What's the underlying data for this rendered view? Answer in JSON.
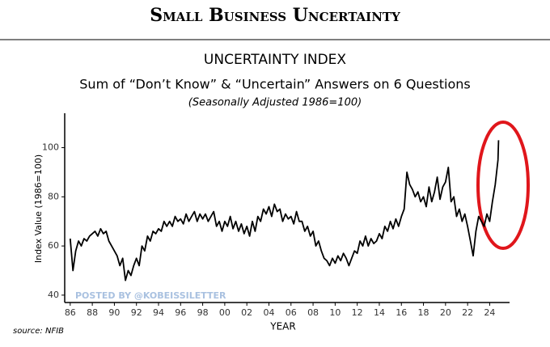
{
  "header": {
    "title": "Small Business Uncertainty"
  },
  "chart_data": {
    "type": "line",
    "title": "UNCERTAINTY INDEX",
    "subtitle": "Sum of “Don’t Know” & “Uncertain” Answers on 6 Questions",
    "note": "(Seasonally Adjusted 1986=100)",
    "x_label": "YEAR",
    "y_label": "Index Value (1986=100)",
    "watermark": "POSTED BY @KOBEISSILETTER",
    "source": "source: NFIB",
    "xlim": [
      1985.5,
      2025.8
    ],
    "ylim": [
      37,
      114
    ],
    "xticks": [
      {
        "value": 1986,
        "label": "86"
      },
      {
        "value": 1988,
        "label": "88"
      },
      {
        "value": 1990,
        "label": "90"
      },
      {
        "value": 1992,
        "label": "92"
      },
      {
        "value": 1994,
        "label": "94"
      },
      {
        "value": 1996,
        "label": "96"
      },
      {
        "value": 1998,
        "label": "98"
      },
      {
        "value": 2000,
        "label": "00"
      },
      {
        "value": 2002,
        "label": "02"
      },
      {
        "value": 2004,
        "label": "04"
      },
      {
        "value": 2006,
        "label": "06"
      },
      {
        "value": 2008,
        "label": "08"
      },
      {
        "value": 2010,
        "label": "10"
      },
      {
        "value": 2012,
        "label": "12"
      },
      {
        "value": 2014,
        "label": "14"
      },
      {
        "value": 2016,
        "label": "16"
      },
      {
        "value": 2018,
        "label": "18"
      },
      {
        "value": 2020,
        "label": "20"
      },
      {
        "value": 2022,
        "label": "22"
      },
      {
        "value": 2024,
        "label": "24"
      }
    ],
    "yticks": [
      40,
      60,
      80,
      100
    ],
    "color": "#000000",
    "x": [
      1986,
      1986.25,
      1986.5,
      1986.75,
      1987,
      1987.25,
      1987.5,
      1987.75,
      1988,
      1988.25,
      1988.5,
      1988.75,
      1989,
      1989.25,
      1989.5,
      1989.75,
      1990,
      1990.25,
      1990.5,
      1990.75,
      1991,
      1991.25,
      1991.5,
      1991.75,
      1992,
      1992.25,
      1992.5,
      1992.75,
      1993,
      1993.25,
      1993.5,
      1993.75,
      1994,
      1994.25,
      1994.5,
      1994.75,
      1995,
      1995.25,
      1995.5,
      1995.75,
      1996,
      1996.25,
      1996.5,
      1996.75,
      1997,
      1997.25,
      1997.5,
      1997.75,
      1998,
      1998.25,
      1998.5,
      1998.75,
      1999,
      1999.25,
      1999.5,
      1999.75,
      2000,
      2000.25,
      2000.5,
      2000.75,
      2001,
      2001.25,
      2001.5,
      2001.75,
      2002,
      2002.25,
      2002.5,
      2002.75,
      2003,
      2003.25,
      2003.5,
      2003.75,
      2004,
      2004.25,
      2004.5,
      2004.75,
      2005,
      2005.25,
      2005.5,
      2005.75,
      2006,
      2006.25,
      2006.5,
      2006.75,
      2007,
      2007.25,
      2007.5,
      2007.75,
      2008,
      2008.25,
      2008.5,
      2008.75,
      2009,
      2009.25,
      2009.5,
      2009.75,
      2010,
      2010.25,
      2010.5,
      2010.75,
      2011,
      2011.25,
      2011.5,
      2011.75,
      2012,
      2012.25,
      2012.5,
      2012.75,
      2013,
      2013.25,
      2013.5,
      2013.75,
      2014,
      2014.25,
      2014.5,
      2014.75,
      2015,
      2015.25,
      2015.5,
      2015.75,
      2016,
      2016.25,
      2016.5,
      2016.75,
      2017,
      2017.25,
      2017.5,
      2017.75,
      2018,
      2018.25,
      2018.5,
      2018.75,
      2019,
      2019.25,
      2019.5,
      2019.75,
      2020,
      2020.25,
      2020.5,
      2020.75,
      2021,
      2021.25,
      2021.5,
      2021.75,
      2022,
      2022.25,
      2022.5,
      2022.75,
      2023,
      2023.25,
      2023.5,
      2023.75,
      2024,
      2024.25,
      2024.5,
      2024.75,
      2024.8
    ],
    "values": [
      63,
      50,
      58,
      62,
      60,
      63,
      62,
      64,
      65,
      66,
      64,
      67,
      65,
      66,
      62,
      60,
      58,
      56,
      52,
      55,
      46,
      50,
      48,
      52,
      55,
      52,
      60,
      58,
      64,
      62,
      66,
      65,
      67,
      66,
      70,
      68,
      70,
      68,
      72,
      70,
      71,
      69,
      73,
      70,
      72,
      74,
      70,
      73,
      71,
      73,
      70,
      72,
      74,
      68,
      70,
      66,
      70,
      68,
      72,
      67,
      70,
      66,
      69,
      65,
      68,
      64,
      70,
      66,
      72,
      70,
      75,
      73,
      76,
      72,
      77,
      74,
      75,
      70,
      73,
      71,
      72,
      69,
      74,
      70,
      70,
      66,
      68,
      64,
      66,
      60,
      62,
      58,
      55,
      54,
      52,
      55,
      53,
      56,
      54,
      57,
      55,
      52,
      55,
      58,
      57,
      62,
      60,
      64,
      60,
      63,
      61,
      62,
      65,
      63,
      68,
      66,
      70,
      67,
      71,
      68,
      72,
      75,
      90,
      85,
      83,
      80,
      82,
      78,
      80,
      76,
      84,
      78,
      82,
      88,
      79,
      84,
      86,
      92,
      78,
      80,
      72,
      75,
      70,
      73,
      68,
      62,
      56,
      66,
      72,
      70,
      68,
      73,
      70,
      78,
      85,
      95,
      103
    ]
  }
}
